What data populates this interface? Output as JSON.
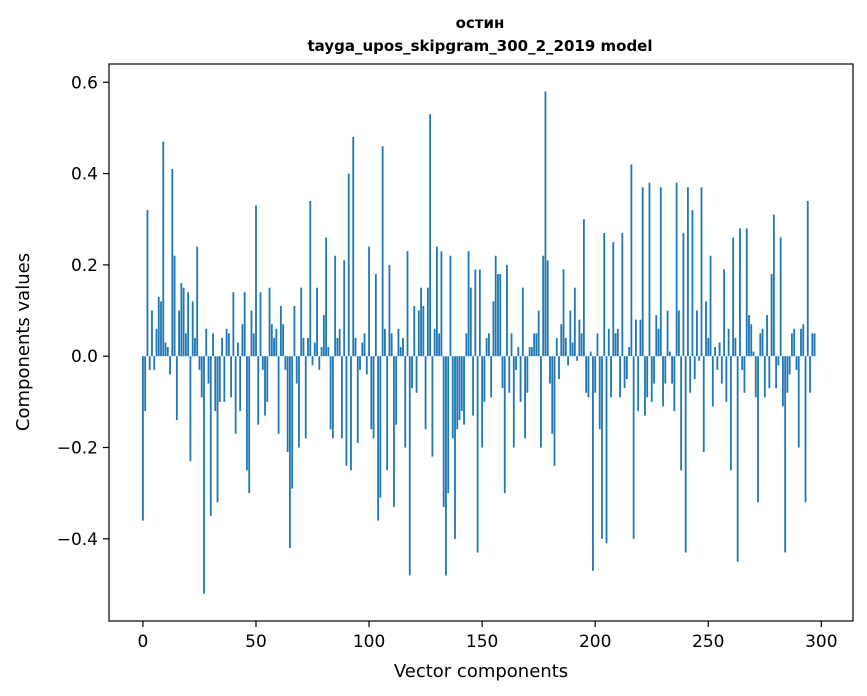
{
  "chart_data": {
    "type": "bar",
    "title_line1": "остин",
    "title_line2": "tayga_upos_skipgram_300_2_2019 model",
    "xlabel": "Vector components",
    "ylabel": "Components values",
    "xlim": [
      -15,
      314
    ],
    "ylim": [
      -0.58,
      0.64
    ],
    "xticks": [
      0,
      50,
      100,
      150,
      200,
      250,
      300
    ],
    "yticks": [
      0.6,
      0.4,
      0.2,
      0.0,
      -0.2,
      -0.4
    ],
    "ytick_labels": [
      "0.6",
      "0.4",
      "0.2",
      "0.0",
      "−0.2",
      "−0.4"
    ],
    "bar_color": "#1f77b4",
    "values": [
      -0.36,
      -0.12,
      0.32,
      -0.03,
      0.1,
      -0.03,
      0.06,
      0.13,
      0.12,
      0.47,
      0.03,
      0.02,
      -0.04,
      0.41,
      0.22,
      -0.14,
      0.1,
      0.16,
      0.15,
      0.05,
      0.14,
      -0.23,
      0.12,
      0.04,
      0.24,
      -0.03,
      -0.09,
      -0.52,
      0.06,
      -0.06,
      -0.35,
      0.05,
      -0.12,
      -0.32,
      -0.1,
      0.04,
      -0.1,
      0.06,
      0.05,
      -0.09,
      0.14,
      -0.17,
      0.03,
      -0.12,
      0.07,
      0.14,
      -0.25,
      -0.3,
      0.1,
      0.05,
      0.33,
      -0.15,
      0.14,
      -0.03,
      -0.13,
      -0.1,
      0.15,
      0.07,
      0.04,
      0.06,
      -0.17,
      0.11,
      0.07,
      -0.03,
      -0.21,
      -0.42,
      -0.29,
      0.11,
      -0.06,
      -0.2,
      0.15,
      0.04,
      -0.18,
      0.04,
      0.34,
      -0.02,
      0.03,
      0.15,
      -0.03,
      0.02,
      0.09,
      0.26,
      0.02,
      -0.16,
      -0.18,
      0.22,
      0.04,
      0.06,
      -0.18,
      0.21,
      -0.24,
      0.4,
      -0.25,
      0.48,
      0.04,
      -0.19,
      -0.03,
      0.03,
      0.05,
      -0.04,
      0.24,
      -0.16,
      -0.18,
      0.18,
      -0.36,
      -0.31,
      0.46,
      0.06,
      -0.25,
      0.2,
      0.05,
      -0.33,
      -0.15,
      0.06,
      0.02,
      0.04,
      -0.2,
      0.23,
      -0.48,
      -0.07,
      0.11,
      -0.08,
      0.1,
      0.15,
      0.11,
      -0.16,
      0.15,
      0.53,
      -0.22,
      0.06,
      0.24,
      0.05,
      0.23,
      -0.33,
      -0.48,
      -0.3,
      0.22,
      -0.18,
      -0.4,
      -0.16,
      -0.14,
      -0.12,
      -0.15,
      0.05,
      0.23,
      0.15,
      -0.13,
      0.19,
      -0.43,
      0.19,
      -0.2,
      -0.1,
      0.04,
      0.05,
      -0.09,
      0.12,
      0.22,
      0.18,
      0.18,
      -0.07,
      -0.3,
      0.2,
      -0.08,
      0.05,
      -0.2,
      -0.03,
      0.02,
      -0.1,
      0.15,
      -0.18,
      -0.08,
      0.02,
      0.02,
      0.05,
      0.05,
      0.1,
      -0.2,
      0.22,
      0.58,
      0.21,
      -0.06,
      -0.17,
      -0.24,
      0.04,
      -0.05,
      0.07,
      0.19,
      0.04,
      -0.02,
      0.1,
      0.03,
      0.15,
      -0.01,
      0.08,
      0.05,
      0.3,
      -0.08,
      -0.09,
      0.01,
      -0.47,
      -0.08,
      0.05,
      -0.16,
      -0.4,
      0.27,
      -0.41,
      0.06,
      -0.09,
      0.25,
      0.05,
      0.06,
      -0.09,
      0.27,
      -0.07,
      -0.05,
      0.02,
      0.42,
      -0.4,
      0.08,
      -0.12,
      0.08,
      0.37,
      -0.13,
      -0.09,
      0.38,
      -0.1,
      -0.06,
      0.09,
      0.06,
      0.37,
      -0.11,
      -0.06,
      0.1,
      0.01,
      -0.06,
      -0.12,
      0.38,
      0.1,
      -0.25,
      0.27,
      -0.43,
      0.37,
      -0.08,
      0.32,
      -0.05,
      0.1,
      -0.01,
      0.37,
      -0.21,
      0.12,
      0.04,
      0.22,
      -0.11,
      0.02,
      -0.03,
      0.03,
      -0.06,
      0.19,
      -0.1,
      0.06,
      -0.25,
      0.26,
      0.04,
      -0.45,
      0.28,
      -0.03,
      -0.08,
      0.28,
      0.09,
      0.07,
      0.01,
      -0.09,
      -0.32,
      0.05,
      0.06,
      -0.09,
      0.09,
      -0.07,
      0.18,
      0.31,
      -0.07,
      -0.02,
      0.26,
      -0.11,
      -0.43,
      -0.08,
      -0.04,
      0.05,
      0.06,
      -0.03,
      -0.2,
      0.06,
      0.07,
      -0.32,
      0.34,
      -0.08,
      0.05,
      0.05
    ]
  }
}
